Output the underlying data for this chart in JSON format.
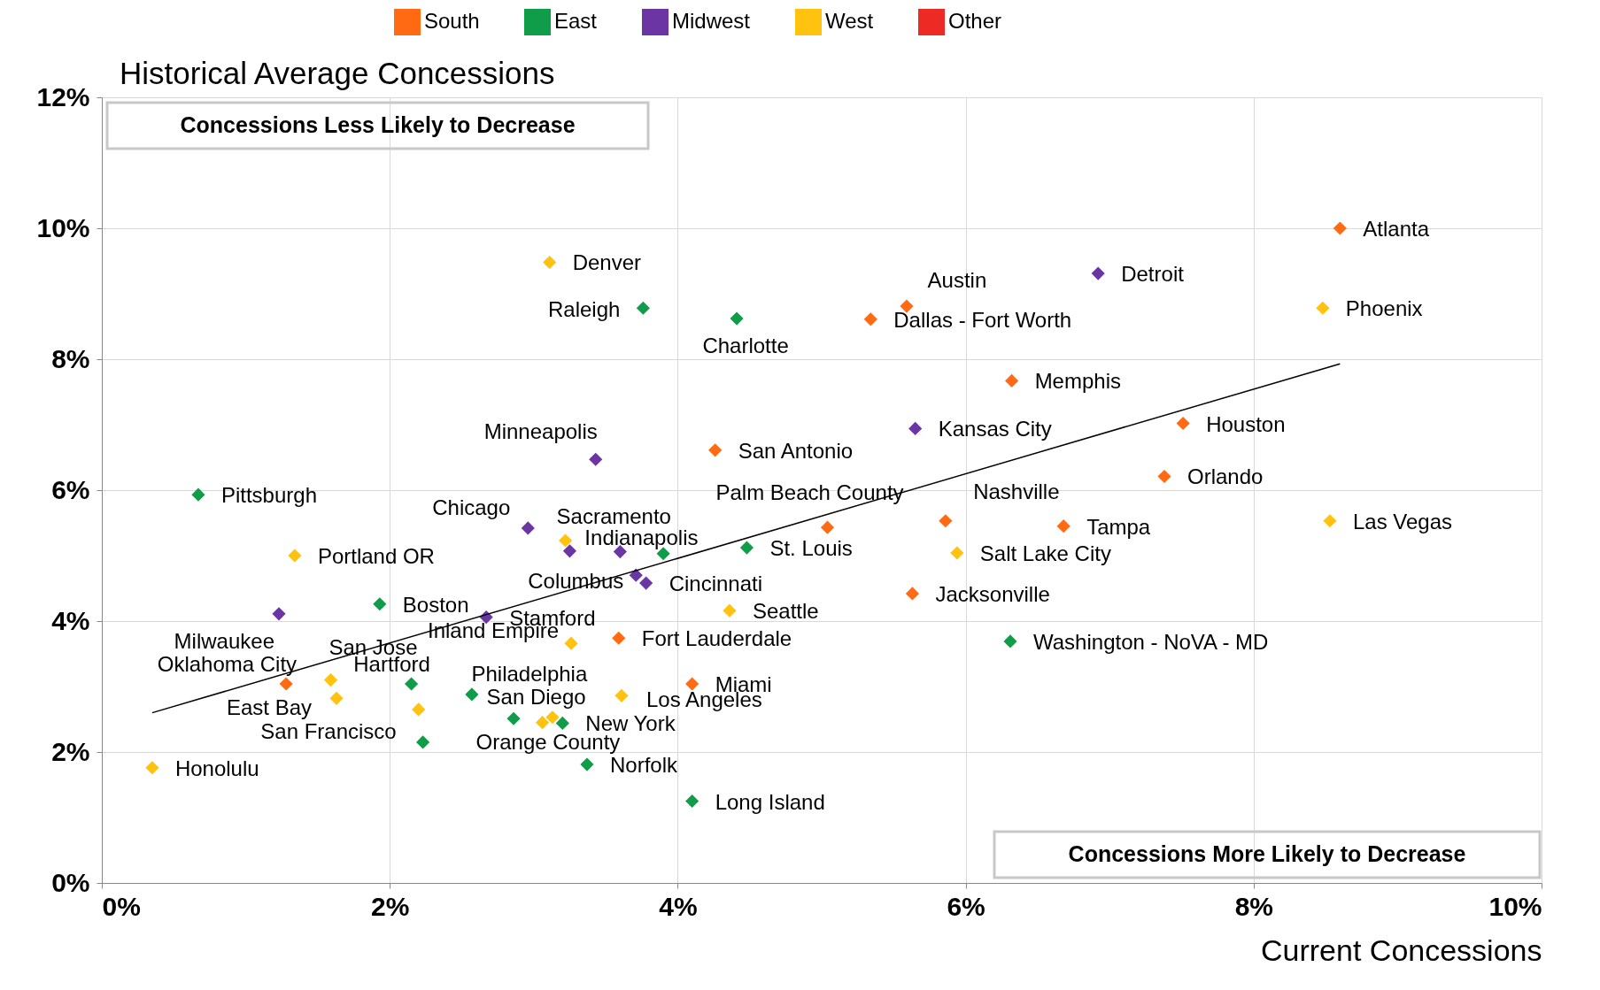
{
  "chart_data": {
    "type": "scatter",
    "title": "Historical Average Concessions",
    "xlabel": "Current Concessions",
    "xlim": [
      0,
      10
    ],
    "ylim": [
      0,
      12
    ],
    "xticks": [
      {
        "value": 0,
        "label": "0%"
      },
      {
        "value": 2,
        "label": "2%"
      },
      {
        "value": 4,
        "label": "4%"
      },
      {
        "value": 6,
        "label": "6%"
      },
      {
        "value": 8,
        "label": "8%"
      },
      {
        "value": 10,
        "label": "10%"
      }
    ],
    "yticks": [
      {
        "value": 0,
        "label": "0%"
      },
      {
        "value": 2,
        "label": "2%"
      },
      {
        "value": 4,
        "label": "4%"
      },
      {
        "value": 6,
        "label": "6%"
      },
      {
        "value": 8,
        "label": "8%"
      },
      {
        "value": 10,
        "label": "10%"
      },
      {
        "value": 12,
        "label": "12%"
      }
    ],
    "grid": true,
    "legend": "top",
    "marker": "diamond",
    "annotations": [
      "Concessions Less Likely to Decrease",
      "Concessions More Likely to Decrease"
    ],
    "series": [
      {
        "name": "South",
        "color": "#ff6a13",
        "x": [
          8.6,
          5.59,
          5.34,
          6.32,
          7.51,
          4.26,
          7.38,
          6.68,
          5.86,
          5.04,
          5.63,
          3.59,
          1.28,
          4.1
        ],
        "values": [
          10.0,
          8.81,
          8.61,
          7.67,
          7.02,
          6.61,
          6.21,
          5.45,
          5.53,
          5.43,
          4.42,
          3.74,
          3.04,
          3.04
        ],
        "value_labels": [
          "Atlanta",
          "Austin",
          "Dallas - Fort Worth",
          "Memphis",
          "Houston",
          "San Antonio",
          "Orlando",
          "Tampa",
          "Nashville",
          "Palm Beach County",
          "Jacksonville",
          "Fort Lauderdale",
          "Oklahoma City",
          "Miami"
        ]
      },
      {
        "name": "East",
        "color": "#0f9d4a",
        "x": [
          3.76,
          4.41,
          0.67,
          4.48,
          1.93,
          6.31,
          2.15,
          2.57,
          3.2,
          3.37,
          4.1,
          3.9,
          2.86,
          2.23
        ],
        "values": [
          8.78,
          8.62,
          5.93,
          5.12,
          4.26,
          3.69,
          3.04,
          2.88,
          2.44,
          1.81,
          1.25,
          5.03,
          2.51,
          2.15
        ],
        "value_labels": [
          "Raleigh",
          "Charlotte",
          "Pittsburgh",
          "St. Louis",
          "Boston",
          "Washington - NoVA - MD",
          "Hartford",
          "Philadelphia",
          "New York",
          "Norfolk",
          "Long Island",
          null,
          null,
          null
        ]
      },
      {
        "name": "Midwest",
        "color": "#6b35a3",
        "x": [
          6.92,
          5.65,
          3.43,
          2.96,
          3.6,
          3.71,
          3.78,
          1.23,
          2.67,
          3.25
        ],
        "values": [
          9.31,
          6.94,
          6.47,
          5.42,
          5.06,
          4.7,
          4.58,
          4.11,
          4.06,
          5.07
        ],
        "value_labels": [
          "Detroit",
          "Kansas City",
          "Minneapolis",
          "Chicago",
          "Indianapolis",
          "Columbus",
          "Cincinnati",
          "Milwaukee",
          "Stamford",
          null
        ]
      },
      {
        "name": "West",
        "color": "#ffc20e",
        "x": [
          3.11,
          8.48,
          8.53,
          5.94,
          3.22,
          1.34,
          4.36,
          3.26,
          1.59,
          1.63,
          3.61,
          2.2,
          3.06,
          3.13,
          0.35
        ],
        "values": [
          9.48,
          8.78,
          5.53,
          5.04,
          5.23,
          5.0,
          4.16,
          3.66,
          3.1,
          2.82,
          2.86,
          2.65,
          2.45,
          2.53,
          1.76
        ],
        "value_labels": [
          "Denver",
          "Phoenix",
          "Las Vegas",
          "Salt Lake City",
          "Sacramento",
          "Portland OR",
          "Seattle",
          "Inland Empire",
          "San Jose",
          "East Bay",
          "Los Angeles",
          "San Francisco",
          "San Diego",
          "Orange County",
          "Honolulu"
        ]
      },
      {
        "name": "Other",
        "color": "#ee2a24"
      },
      {
        "type": "line",
        "color": "#000000",
        "marker": "none",
        "x": [
          0.35,
          8.6
        ],
        "values": [
          2.6,
          7.93
        ]
      }
    ]
  }
}
